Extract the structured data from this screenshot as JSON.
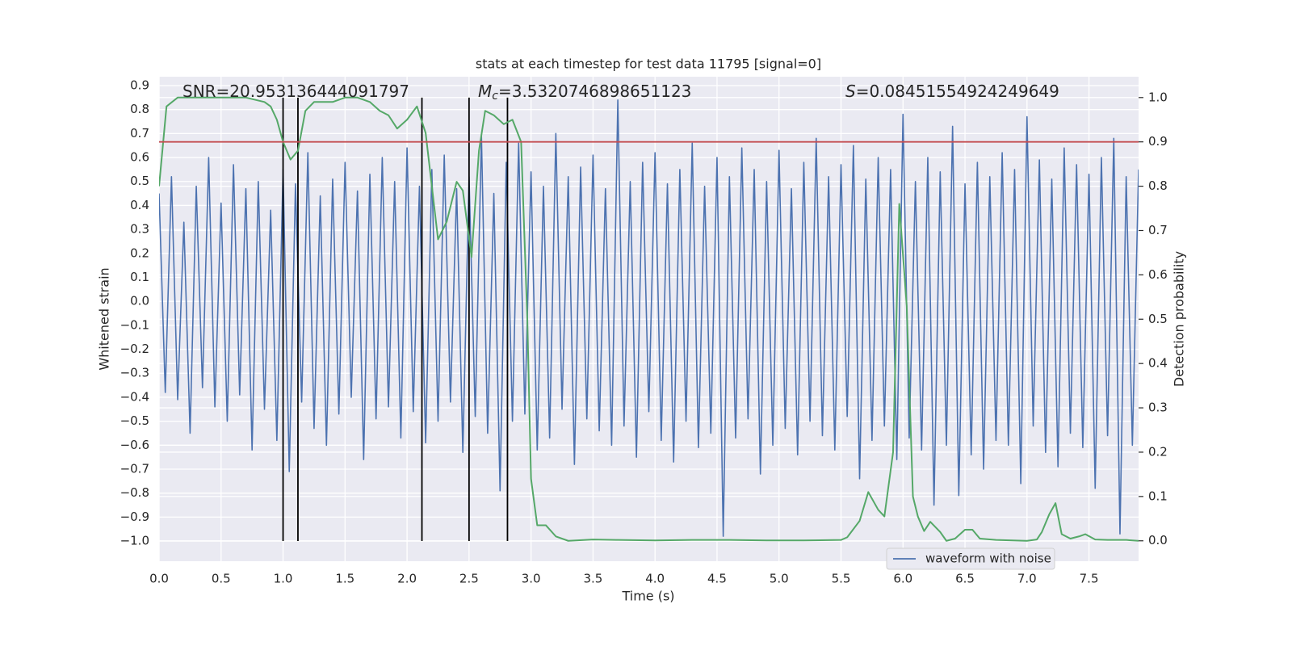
{
  "chart_data": {
    "type": "line",
    "title": "stats at each timestep for test data 11795 [signal=0]",
    "xlabel": "Time (s)",
    "ylabel": "Whitened strain",
    "y2label": "Detection probability",
    "annotations": [
      {
        "text": "SNR=20.953136444091797"
      },
      {
        "symbol": "M",
        "subscript": "c",
        "text": "=3.5320746898651123"
      },
      {
        "symbol": "S",
        "text": "=0.08451554924249649"
      }
    ],
    "xlim": [
      0,
      7.9
    ],
    "ylim": [
      -1.084,
      0.937
    ],
    "y2lim": [
      -0.046,
      1.047
    ],
    "xticks": [
      {
        "value": 0,
        "label": "0.0"
      },
      0.5,
      {
        "value": 1,
        "label": "1.0"
      },
      1.5,
      {
        "value": 2,
        "label": "2.0"
      },
      2.5,
      {
        "value": 3,
        "label": "3.0"
      },
      3.5,
      {
        "value": 4,
        "label": "4.0"
      },
      4.5,
      {
        "value": 5,
        "label": "5.0"
      },
      5.5,
      {
        "value": 6,
        "label": "6.0"
      },
      6.5,
      {
        "value": 7,
        "label": "7.0"
      },
      7.5
    ],
    "yticks": [
      {
        "value": -1,
        "label": "−1.0"
      },
      {
        "value": -0.9,
        "label": "−0.9"
      },
      {
        "value": -0.8,
        "label": "−0.8"
      },
      {
        "value": -0.7,
        "label": "−0.7"
      },
      {
        "value": -0.6,
        "label": "−0.6"
      },
      {
        "value": -0.5,
        "label": "−0.5"
      },
      {
        "value": -0.4,
        "label": "−0.4"
      },
      {
        "value": -0.3,
        "label": "−0.3"
      },
      {
        "value": -0.2,
        "label": "−0.2"
      },
      {
        "value": -0.1,
        "label": "−0.1"
      },
      {
        "value": 0,
        "label": "0.0"
      },
      0.1,
      0.2,
      0.3,
      0.4,
      0.5,
      0.6,
      0.7,
      0.8,
      0.9
    ],
    "y2ticks": [
      {
        "value": 0,
        "label": "0.0"
      },
      0.1,
      0.2,
      0.3,
      0.4,
      0.5,
      0.6,
      0.7,
      0.8,
      0.9,
      {
        "value": 1,
        "label": "1.0"
      }
    ],
    "grid": true,
    "legend": "lower right",
    "background": "#eaeaf2",
    "series": [
      {
        "name": "waveform with noise",
        "color": "#4c72b0",
        "x": [
          0,
          0.05,
          0.1,
          0.15,
          0.2,
          0.25,
          0.3,
          0.35,
          0.4,
          0.45,
          0.5,
          0.55,
          0.6,
          0.65,
          0.7,
          0.75,
          0.8,
          0.85,
          0.9,
          0.95,
          1,
          1.05,
          1.1,
          1.15,
          1.2,
          1.25,
          1.3,
          1.35,
          1.4,
          1.45,
          1.5,
          1.55,
          1.6,
          1.65,
          1.7,
          1.75,
          1.8,
          1.85,
          1.9,
          1.95,
          2,
          2.05,
          2.1,
          2.15,
          2.2,
          2.25,
          2.3,
          2.35,
          2.4,
          2.45,
          2.5,
          2.55,
          2.6,
          2.65,
          2.7,
          2.75,
          2.8,
          2.85,
          2.9,
          2.95,
          3,
          3.05,
          3.1,
          3.15,
          3.2,
          3.25,
          3.3,
          3.35,
          3.4,
          3.45,
          3.5,
          3.55,
          3.6,
          3.65,
          3.7,
          3.75,
          3.8,
          3.85,
          3.9,
          3.95,
          4,
          4.05,
          4.1,
          4.15,
          4.2,
          4.25,
          4.3,
          4.35,
          4.4,
          4.45,
          4.5,
          4.55,
          4.6,
          4.65,
          4.7,
          4.75,
          4.8,
          4.85,
          4.9,
          4.95,
          5,
          5.05,
          5.1,
          5.15,
          5.2,
          5.25,
          5.3,
          5.35,
          5.4,
          5.45,
          5.5,
          5.55,
          5.6,
          5.65,
          5.7,
          5.75,
          5.8,
          5.85,
          5.9,
          5.95,
          6,
          6.05,
          6.1,
          6.15,
          6.2,
          6.25,
          6.3,
          6.35,
          6.4,
          6.45,
          6.5,
          6.55,
          6.6,
          6.65,
          6.7,
          6.75,
          6.8,
          6.85,
          6.9,
          6.95,
          7,
          7.05,
          7.1,
          7.15,
          7.2,
          7.25,
          7.3,
          7.35,
          7.4,
          7.45,
          7.5,
          7.55,
          7.6,
          7.65,
          7.7,
          7.75,
          7.8,
          7.85,
          7.9
        ],
        "values": [
          0.45,
          -0.38,
          0.52,
          -0.41,
          0.33,
          -0.55,
          0.48,
          -0.36,
          0.6,
          -0.44,
          0.41,
          -0.5,
          0.57,
          -0.39,
          0.47,
          -0.62,
          0.5,
          -0.45,
          0.38,
          -0.58,
          0.55,
          -0.71,
          0.49,
          -0.42,
          0.62,
          -0.53,
          0.44,
          -0.6,
          0.51,
          -0.47,
          0.58,
          -0.4,
          0.46,
          -0.66,
          0.53,
          -0.49,
          0.6,
          -0.44,
          0.5,
          -0.57,
          0.64,
          -0.46,
          0.48,
          -0.59,
          0.55,
          -0.5,
          0.61,
          -0.42,
          0.47,
          -0.63,
          0.52,
          -0.48,
          0.69,
          -0.55,
          0.45,
          -0.79,
          0.58,
          -0.5,
          0.66,
          -0.47,
          0.54,
          -0.62,
          0.48,
          -0.57,
          0.7,
          -0.45,
          0.52,
          -0.68,
          0.56,
          -0.49,
          0.61,
          -0.54,
          0.47,
          -0.6,
          0.84,
          -0.52,
          0.5,
          -0.65,
          0.58,
          -0.46,
          0.62,
          -0.58,
          0.49,
          -0.67,
          0.55,
          -0.5,
          0.66,
          -0.61,
          0.48,
          -0.55,
          0.6,
          -0.98,
          0.52,
          -0.57,
          0.64,
          -0.49,
          0.55,
          -0.72,
          0.5,
          -0.6,
          0.63,
          -0.53,
          0.47,
          -0.64,
          0.58,
          -0.5,
          0.68,
          -0.56,
          0.52,
          -0.62,
          0.57,
          -0.48,
          0.65,
          -0.74,
          0.51,
          -0.58,
          0.6,
          -0.52,
          0.55,
          -0.66,
          0.78,
          -0.57,
          0.5,
          -0.62,
          0.6,
          -0.85,
          0.54,
          -0.6,
          0.73,
          -0.81,
          0.49,
          -0.64,
          0.58,
          -0.7,
          0.52,
          -0.58,
          0.62,
          -0.6,
          0.55,
          -0.76,
          0.77,
          -0.52,
          0.59,
          -0.63,
          0.51,
          -0.69,
          0.64,
          -0.55,
          0.57,
          -0.61,
          0.53,
          -0.78,
          0.6,
          -0.56,
          0.68,
          -0.97,
          0.52,
          -0.6,
          0.55
        ]
      }
    ],
    "probability": {
      "color": "#55a868",
      "axis": "y2",
      "x": [
        0,
        0.06,
        0.15,
        0.3,
        0.5,
        0.7,
        0.85,
        0.9,
        0.95,
        1,
        1.06,
        1.12,
        1.18,
        1.25,
        1.4,
        1.5,
        1.6,
        1.7,
        1.78,
        1.85,
        1.92,
        2,
        2.08,
        2.15,
        2.25,
        2.32,
        2.4,
        2.45,
        2.52,
        2.58,
        2.63,
        2.7,
        2.78,
        2.85,
        2.92,
        2.97,
        3,
        3.05,
        3.12,
        3.2,
        3.3,
        3.5,
        3.7,
        4,
        4.3,
        4.6,
        4.9,
        5.2,
        5.5,
        5.55,
        5.65,
        5.72,
        5.8,
        5.85,
        5.92,
        5.97,
        6.03,
        6.08,
        6.12,
        6.17,
        6.22,
        6.3,
        6.35,
        6.42,
        6.5,
        6.56,
        6.62,
        6.75,
        7,
        7.08,
        7.12,
        7.18,
        7.23,
        7.28,
        7.35,
        7.42,
        7.47,
        7.55,
        7.65,
        7.8,
        7.9
      ],
      "values": [
        0.8,
        0.98,
        1,
        1,
        1,
        1,
        0.99,
        0.98,
        0.95,
        0.9,
        0.86,
        0.88,
        0.97,
        0.99,
        0.99,
        1,
        1,
        0.99,
        0.97,
        0.96,
        0.93,
        0.95,
        0.98,
        0.92,
        0.68,
        0.72,
        0.81,
        0.79,
        0.64,
        0.88,
        0.97,
        0.96,
        0.94,
        0.95,
        0.9,
        0.5,
        0.14,
        0.035,
        0.035,
        0.01,
        0,
        0.003,
        0.002,
        0.001,
        0.002,
        0.002,
        0.001,
        0.001,
        0.002,
        0.008,
        0.045,
        0.11,
        0.07,
        0.055,
        0.2,
        0.76,
        0.53,
        0.1,
        0.055,
        0.022,
        0.043,
        0.02,
        0,
        0.005,
        0.025,
        0.025,
        0.005,
        0.002,
        0,
        0.003,
        0.02,
        0.06,
        0.085,
        0.015,
        0.005,
        0.01,
        0.015,
        0.003,
        0.002,
        0.002,
        0
      ]
    },
    "threshold": {
      "value": 0.9,
      "axis": "y2",
      "color": "#c44e52"
    },
    "vlines": {
      "x": [
        1,
        1.12,
        2.12,
        2.5,
        2.81
      ],
      "ylim": [
        -1,
        0.85
      ],
      "color": "#000000"
    }
  }
}
